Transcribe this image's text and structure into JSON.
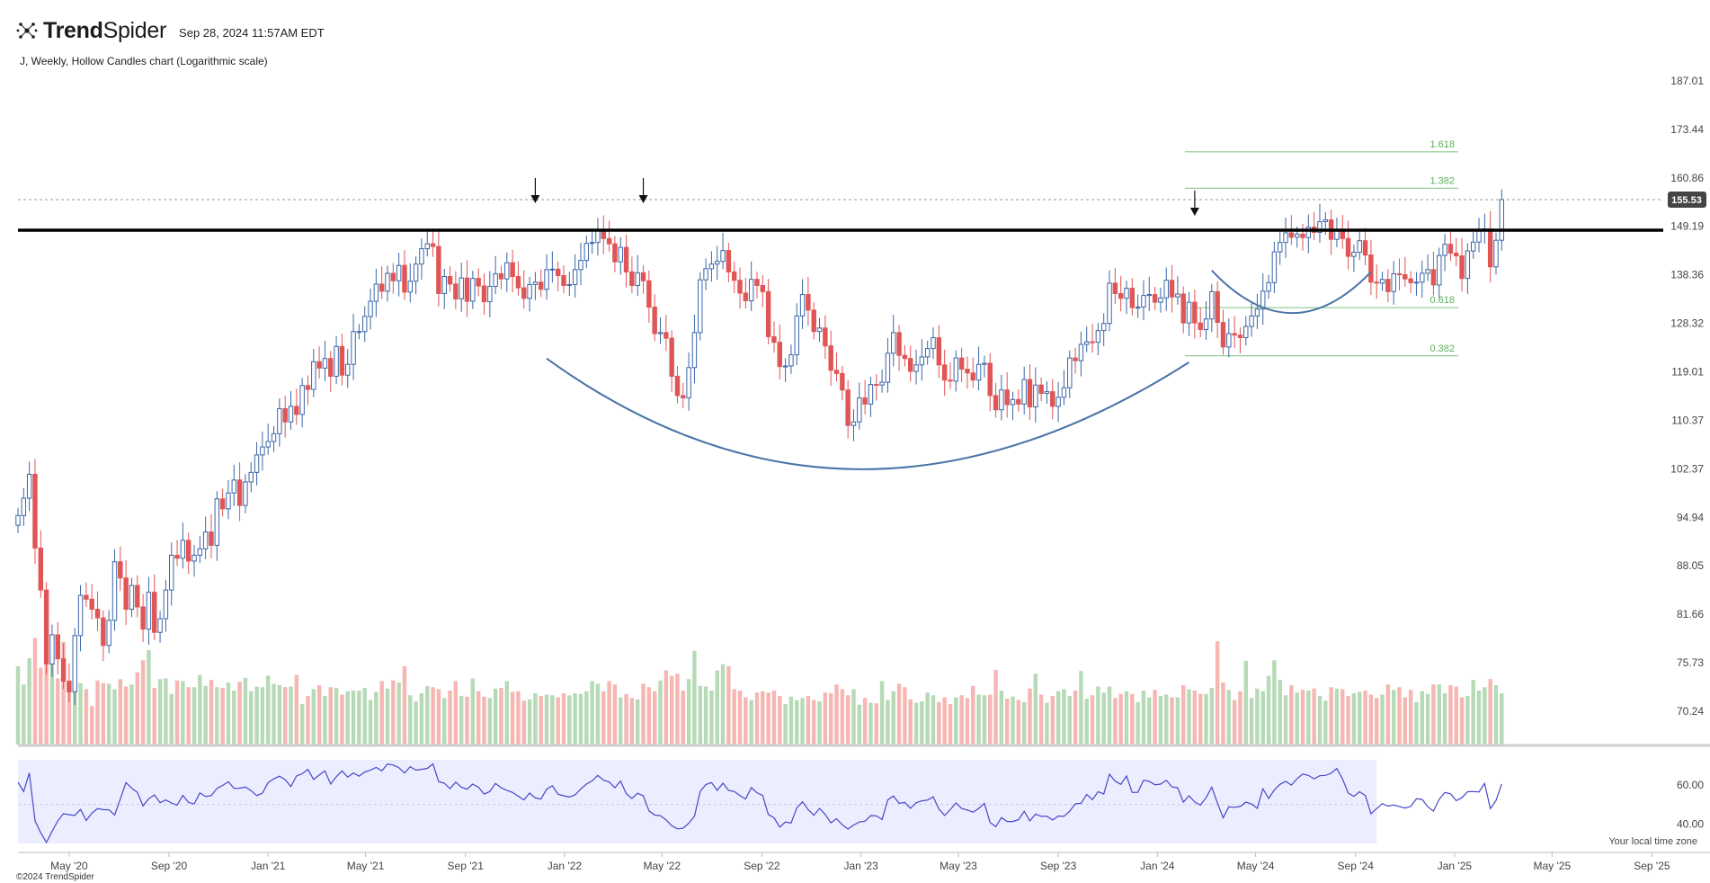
{
  "header": {
    "brand_bold": "Trend",
    "brand_rest": "Spider",
    "timestamp": "Sep 28, 2024 11:57AM EDT",
    "logo_icon": "trendspider-logo-icon"
  },
  "subtitle": "J, Weekly, Hollow Candles chart (Logarithmic scale)",
  "footer": {
    "timezone_note": "Your local time zone",
    "copyright": "©2024 TrendSpider"
  },
  "colors": {
    "up": "#3a66a8",
    "down": "#e05555",
    "vol_up": "#b6dab6",
    "vol_down": "#f6b6b2",
    "fib": "#7cc17c",
    "arc": "#4a74a8",
    "resistance": "#000000",
    "rsi_bg": "#eceeff",
    "rsi_line": "#4646c8",
    "badge": "#444444"
  },
  "chart_data": [
    {
      "type": "candlestick",
      "scale": "log",
      "y_ticks": [
        187.01,
        173.44,
        160.86,
        149.19,
        138.36,
        128.32,
        119.01,
        110.37,
        102.37,
        94.94,
        88.05,
        81.66,
        75.73,
        70.24
      ],
      "x_ticks": [
        "May '20",
        "Sep '20",
        "Jan '21",
        "May '21",
        "Sep '21",
        "Jan '22",
        "May '22",
        "Sep '22",
        "Jan '23",
        "May '23",
        "Sep '23",
        "Jan '24",
        "May '24",
        "Sep '24",
        "Jan '25",
        "May '25",
        "Sep '25"
      ],
      "x_range": [
        "2020-02-28",
        "2025-09-26"
      ],
      "last_price": "155.53",
      "resistance_level": 148.3,
      "fibonacci": [
        {
          "label": "1.618",
          "value": 167.5
        },
        {
          "label": "1.382",
          "value": 158.3
        },
        {
          "label": "0.618",
          "value": 131.5
        },
        {
          "label": "0.382",
          "value": 122.0
        }
      ],
      "annotations": {
        "arrows_down": [
          "2021-11-26",
          "2022-04-08",
          "2024-02-16"
        ],
        "large_arc": {
          "start": [
            "2021-12-10",
            121.5
          ],
          "bottom": [
            "2022-12-30",
            102.3
          ],
          "end": [
            "2024-02-09",
            120.8
          ]
        },
        "small_arc": {
          "start": [
            "2024-03-08",
            139.3
          ],
          "bottom": [
            "2024-06-14",
            130.4
          ],
          "end": [
            "2024-09-20",
            139.0
          ]
        }
      },
      "weekly_close": [
        95.2,
        97.8,
        101.5,
        90.5,
        84.8,
        75.6,
        79.1,
        76.2,
        73.6,
        72.4,
        79.0,
        84.1,
        83.6,
        82.3,
        81.2,
        77.8,
        80.9,
        88.6,
        86.4,
        82.3,
        85.4,
        82.6,
        79.8,
        84.5,
        79.4,
        81.1,
        84.8,
        89.5,
        89.1,
        91.6,
        88.7,
        89.5,
        90.4,
        92.8,
        90.9,
        97.7,
        96.2,
        98.6,
        100.6,
        96.7,
        100.3,
        101.8,
        104.6,
        105.9,
        106.8,
        108.1,
        112.4,
        110.1,
        112.8,
        111.4,
        116.5,
        115.8,
        120.9,
        119.7,
        121.5,
        118.2,
        123.8,
        118.4,
        120.4,
        126.7,
        126.7,
        129.7,
        132.8,
        136.4,
        134.9,
        138.7,
        137.1,
        140.4,
        134.7,
        137.0,
        140.7,
        144.1,
        145.2,
        144.6,
        134.4,
        138.0,
        136.4,
        133.3,
        137.7,
        132.8,
        137.6,
        136.0,
        132.7,
        135.9,
        138.6,
        137.5,
        141.0,
        138.0,
        135.6,
        133.4,
        136.3,
        136.8,
        135.3,
        139.5,
        139.6,
        138.2,
        136.1,
        136.3,
        139.5,
        141.5,
        145.3,
        145.5,
        148.2,
        146.4,
        145.2,
        141.2,
        144.4,
        139.0,
        136.1,
        138.8,
        137.1,
        131.6,
        126.3,
        126.5,
        125.4,
        118.2,
        114.7,
        114.3,
        119.8,
        126.5,
        137.3,
        139.7,
        140.7,
        141.3,
        143.7,
        139.0,
        137.2,
        134.5,
        132.9,
        137.4,
        136.1,
        134.8,
        125.7,
        124.6,
        120.0,
        120.1,
        122.2,
        129.8,
        134.2,
        131.0,
        126.7,
        127.4,
        123.9,
        119.3,
        118.7,
        115.7,
        109.5,
        110.1,
        114.3,
        113.2,
        116.7,
        116.6,
        117.1,
        122.5,
        126.5,
        122.1,
        121.5,
        119.1,
        120.3,
        121.8,
        123.4,
        125.5,
        120.3,
        117.5,
        117.3,
        121.6,
        119.5,
        118.8,
        117.5,
        120.4,
        120.6,
        114.7,
        112.2,
        115.7,
        113.1,
        114.0,
        113.2,
        117.6,
        112.7,
        116.6,
        115.1,
        115.4,
        112.8,
        114.4,
        116.1,
        121.6,
        121.1,
        124.2,
        124.7,
        124.6,
        126.9,
        128.3,
        136.6,
        134.4,
        133.4,
        135.5,
        131.5,
        131.6,
        134.0,
        134.2,
        132.6,
        133.5,
        137.2,
        133.7,
        134.3,
        128.4,
        132.6,
        128.4,
        127.1,
        129.2,
        134.8,
        128.5,
        123.7,
        126.3,
        126.0,
        125.5,
        127.7,
        129.8,
        131.2,
        134.9,
        136.7,
        143.4,
        145.5,
        147.7,
        146.7,
        147.4,
        146.6,
        149.0,
        147.8,
        150.3,
        150.7,
        146.2,
        148.3,
        146.4,
        142.4,
        143.3,
        145.9,
        142.7,
        136.8,
        136.6,
        137.4,
        134.8,
        138.6,
        138.4,
        137.5,
        136.7,
        136.8,
        138.7,
        139.5,
        136.2,
        142.6,
        145.1,
        143.1,
        142.5,
        137.6,
        143.6,
        145.6,
        148.2,
        148.6,
        140.1,
        146.0,
        155.53
      ],
      "volume": [
        1.16,
        0.89,
        1.28,
        1.58,
        1.14,
        1.44,
        1.51,
        0.98,
        1.52,
        0.93,
        1.02,
        0.91,
        0.82,
        0.57,
        0.95,
        0.91,
        0.9,
        0.82,
        0.97,
        0.86,
        0.89,
        1.07,
        1.25,
        1.4,
        0.84,
        0.97,
        0.98,
        0.75,
        0.95,
        0.94,
        0.85,
        0.85,
        1.03,
        0.87,
        0.96,
        0.85,
        0.84,
        0.92,
        0.8,
        0.93,
        0.99,
        0.79,
        0.86,
        0.85,
        1.02,
        0.9,
        0.88,
        0.85,
        0.86,
        1.03,
        0.6,
        0.72,
        0.82,
        0.88,
        0.72,
        0.85,
        0.84,
        0.74,
        0.79,
        0.8,
        0.8,
        0.84,
        0.66,
        0.78,
        0.94,
        0.83,
        0.95,
        0.92,
        1.16,
        0.73,
        0.64,
        0.76,
        0.87,
        0.85,
        0.82,
        0.69,
        0.8,
        0.94,
        0.72,
        0.71,
        0.98,
        0.79,
        0.71,
        0.69,
        0.83,
        0.84,
        0.94,
        0.78,
        0.79,
        0.65,
        0.67,
        0.76,
        0.72,
        0.74,
        0.73,
        0.7,
        0.76,
        0.73,
        0.76,
        0.75,
        0.79,
        0.94,
        0.9,
        0.79,
        0.94,
        0.89,
        0.7,
        0.75,
        0.69,
        0.67,
        0.9,
        0.85,
        0.79,
        0.95,
        1.1,
        1.02,
        1.05,
        0.8,
        0.97,
        1.39,
        0.87,
        0.86,
        0.8,
        1.1,
        1.19,
        1.16,
        0.82,
        0.8,
        0.7,
        0.66,
        0.77,
        0.79,
        0.77,
        0.8,
        0.72,
        0.6,
        0.71,
        0.66,
        0.69,
        0.72,
        0.66,
        0.64,
        0.77,
        0.76,
        0.89,
        0.82,
        0.73,
        0.82,
        0.59,
        0.69,
        0.62,
        0.61,
        0.94,
        0.66,
        0.79,
        0.9,
        0.85,
        0.67,
        0.62,
        0.64,
        0.77,
        0.73,
        0.63,
        0.7,
        0.6,
        0.7,
        0.73,
        0.69,
        0.87,
        0.74,
        0.73,
        0.74,
        1.11,
        0.8,
        0.68,
        0.71,
        0.66,
        0.63,
        0.83,
        1.05,
        0.74,
        0.62,
        0.72,
        0.79,
        0.82,
        0.72,
        0.8,
        1.09,
        0.68,
        0.73,
        0.86,
        0.77,
        0.86,
        0.69,
        0.75,
        0.79,
        0.75,
        0.63,
        0.8,
        0.7,
        0.81,
        0.72,
        0.74,
        0.7,
        0.7,
        0.88,
        0.82,
        0.8,
        0.75,
        0.75,
        0.84,
        1.53,
        0.92,
        0.81,
        0.66,
        0.79,
        1.24,
        0.69,
        0.83,
        0.79,
        1.02,
        1.25,
        0.96,
        0.73,
        0.88,
        0.77,
        0.81,
        0.8,
        0.83,
        0.72,
        0.65,
        0.85,
        0.83,
        0.82,
        0.72,
        0.76,
        0.78,
        0.8,
        0.74,
        0.69,
        0.74,
        0.89,
        0.81,
        0.85,
        0.7,
        0.81,
        0.63,
        0.79,
        0.75,
        0.89,
        0.89,
        0.76,
        0.88,
        0.86,
        0.7,
        0.72,
        0.96,
        0.8,
        0.85,
        0.97,
        0.88,
        0.76
      ]
    },
    {
      "type": "line",
      "name_hint": "RSI",
      "y_ticks": [
        60.0,
        40.0
      ],
      "ylim": [
        30,
        73
      ],
      "x_range": [
        "2020-02-28",
        "2024-09-27"
      ],
      "values": [
        61.5,
        56.7,
        66.2,
        41.6,
        35.5,
        30.5,
        36.2,
        41.6,
        45.3,
        44.8,
        44.4,
        47.5,
        41.8,
        45.6,
        47.9,
        47.4,
        47.3,
        44.6,
        52.8,
        61.3,
        58.4,
        56.2,
        49.3,
        53.0,
        54.9,
        51.0,
        52.4,
        50.8,
        49.7,
        54.7,
        51.1,
        50.3,
        56.0,
        54.2,
        54.6,
        58.3,
        59.8,
        61.7,
        58.3,
        58.4,
        59.0,
        57.2,
        54.6,
        55.9,
        61.3,
        63.2,
        64.6,
        62.8,
        59.2,
        64.7,
        65.9,
        68.0,
        62.9,
        65.2,
        67.3,
        60.5,
        64.3,
        67.3,
        64.1,
        66.2,
        64.6,
        66.7,
        67.7,
        69.1,
        67.3,
        70.8,
        70.3,
        69.0,
        66.2,
        69.5,
        67.7,
        68.1,
        68.6,
        70.9,
        61.8,
        61.0,
        58.2,
        61.5,
        58.9,
        57.9,
        60.5,
        58.9,
        55.4,
        56.7,
        60.9,
        58.6,
        57.3,
        56.2,
        54.3,
        52.4,
        55.9,
        53.4,
        52.8,
        57.9,
        59.7,
        55.3,
        54.5,
        53.8,
        55.0,
        58.0,
        60.5,
        62.2,
        65.0,
        62.5,
        61.6,
        58.6,
        62.1,
        55.6,
        53.1,
        55.8,
        54.5,
        46.7,
        44.6,
        44.3,
        42.1,
        39.1,
        37.5,
        37.8,
        40.4,
        43.9,
        56.7,
        60.3,
        61.3,
        57.3,
        61.0,
        57.3,
        56.7,
        54.6,
        52.8,
        58.7,
        56.0,
        54.7,
        44.9,
        43.2,
        38.4,
        41.0,
        40.5,
        48.3,
        51.4,
        47.4,
        44.5,
        48.0,
        44.9,
        40.6,
        42.7,
        39.6,
        37.4,
        39.5,
        41.0,
        41.4,
        44.3,
        44.2,
        42.3,
        52.4,
        54.4,
        50.6,
        51.1,
        48.1,
        50.9,
        51.9,
        52.3,
        54.0,
        47.7,
        44.4,
        47.4,
        50.8,
        48.0,
        47.2,
        46.1,
        48.0,
        50.6,
        40.8,
        38.6,
        43.3,
        41.3,
        41.3,
        42.2,
        46.5,
        41.6,
        45.1,
        43.9,
        44.0,
        42.0,
        44.1,
        43.9,
        46.6,
        50.4,
        50.6,
        55.2,
        52.5,
        56.6,
        55.4,
        65.6,
        62.1,
        60.4,
        64.7,
        56.2,
        56.3,
        62.5,
        61.9,
        60.2,
        60.5,
        62.4,
        59.1,
        58.6,
        51.2,
        54.5,
        51.3,
        49.7,
        53.5,
        58.9,
        50.7,
        43.2,
        48.8,
        48.6,
        49.0,
        51.2,
        50.3,
        48.0,
        58.1,
        53.1,
        57.5,
        60.4,
        61.9,
        60.0,
        63.3,
        65.7,
        65.0,
        63.2,
        64.8,
        65.0,
        66.1,
        68.5,
        63.1,
        55.9,
        54.2,
        56.6,
        54.7,
        45.3,
        47.9,
        50.5,
        49.2,
        49.8,
        49.0,
        48.2,
        49.0,
        53.0,
        52.6,
        48.9,
        46.6,
        52.7,
        56.2,
        55.5,
        52.0,
        53.5,
        56.6,
        56.7,
        56.5,
        60.8,
        47.9,
        52.1,
        60.6
      ]
    }
  ]
}
